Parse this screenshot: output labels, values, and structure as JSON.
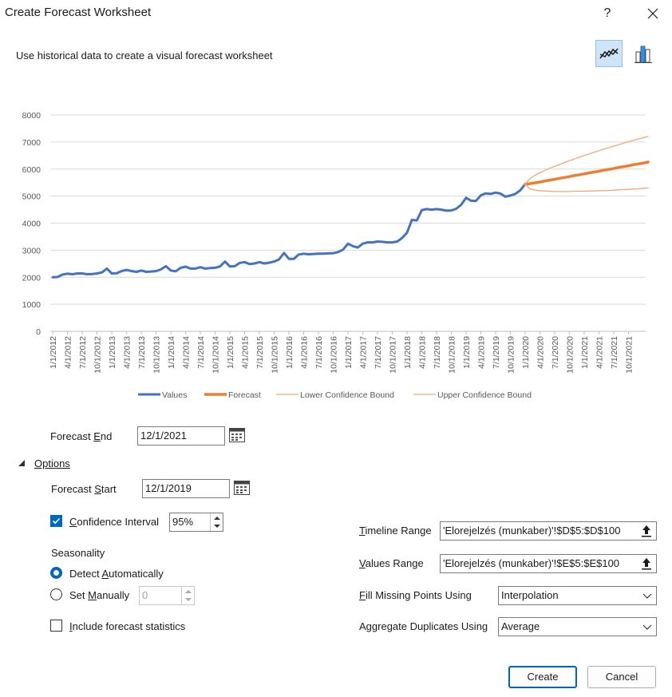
{
  "window": {
    "title": "Create Forecast Worksheet",
    "help_label": "?"
  },
  "subtitle": "Use historical data to create a visual forecast worksheet",
  "chart_types": [
    "line-chart-icon",
    "column-chart-icon"
  ],
  "chart_data": {
    "type": "line",
    "ylim": [
      0,
      8000
    ],
    "y_ticks": [
      "0",
      "1000",
      "2000",
      "3000",
      "4000",
      "5000",
      "6000",
      "7000",
      "8000"
    ],
    "x_tick_labels": [
      "1/1/2012",
      "4/1/2012",
      "7/1/2012",
      "10/1/2012",
      "1/1/2013",
      "4/1/2013",
      "7/1/2013",
      "10/1/2013",
      "1/1/2014",
      "4/1/2014",
      "7/1/2014",
      "10/1/2014",
      "1/1/2015",
      "4/1/2015",
      "7/1/2015",
      "10/1/2015",
      "1/1/2016",
      "4/1/2016",
      "7/1/2016",
      "10/1/2016",
      "1/1/2017",
      "4/1/2017",
      "7/1/2017",
      "10/1/2017",
      "1/1/2018",
      "4/1/2018",
      "7/1/2018",
      "10/1/2018",
      "1/1/2019",
      "4/1/2019",
      "7/1/2019",
      "10/1/2019",
      "1/1/2020",
      "4/1/2020",
      "7/1/2020",
      "10/1/2020",
      "1/1/2021",
      "4/1/2021",
      "7/1/2021",
      "10/1/2021"
    ],
    "grid": true,
    "legend_position": "bottom",
    "series": [
      {
        "name": "Values",
        "color": "#4472c4",
        "width": 3,
        "values": [
          2000,
          2010,
          2100,
          2130,
          2110,
          2140,
          2140,
          2110,
          2120,
          2140,
          2180,
          2320,
          2140,
          2150,
          2230,
          2270,
          2230,
          2200,
          2250,
          2200,
          2210,
          2230,
          2290,
          2410,
          2250,
          2220,
          2350,
          2390,
          2320,
          2320,
          2370,
          2320,
          2340,
          2350,
          2400,
          2580,
          2400,
          2410,
          2530,
          2560,
          2490,
          2510,
          2560,
          2510,
          2540,
          2580,
          2660,
          2900,
          2680,
          2680,
          2840,
          2870,
          2850,
          2860,
          2870,
          2870,
          2880,
          2890,
          2930,
          3020,
          3240,
          3150,
          3100,
          3240,
          3290,
          3290,
          3320,
          3310,
          3290,
          3290,
          3320,
          3450,
          3650,
          4120,
          4100,
          4480,
          4520,
          4500,
          4520,
          4500,
          4460,
          4470,
          4530,
          4680,
          4940,
          4830,
          4820,
          5030,
          5100,
          5080,
          5130,
          5090,
          4980,
          5020,
          5080,
          5210,
          5440,
          null,
          null,
          null,
          null,
          null,
          null,
          null,
          null,
          null,
          null,
          null,
          null,
          null,
          null,
          null,
          null,
          null,
          null,
          null,
          null,
          null,
          null,
          null,
          null
        ]
      },
      {
        "name": "Forecast",
        "color": "#ed7d31",
        "width": 3.5,
        "values": [
          null,
          null,
          null,
          null,
          null,
          null,
          null,
          null,
          null,
          null,
          null,
          null,
          null,
          null,
          null,
          null,
          null,
          null,
          null,
          null,
          null,
          null,
          null,
          null,
          null,
          null,
          null,
          null,
          null,
          null,
          null,
          null,
          null,
          null,
          null,
          null,
          null,
          null,
          null,
          null,
          null,
          null,
          null,
          null,
          null,
          null,
          null,
          null,
          null,
          null,
          null,
          null,
          null,
          null,
          null,
          null,
          null,
          null,
          null,
          null,
          null,
          null,
          null,
          null,
          null,
          null,
          null,
          null,
          null,
          null,
          null,
          null,
          null,
          null,
          null,
          null,
          null,
          null,
          null,
          null,
          null,
          null,
          null,
          null,
          null,
          null,
          null,
          null,
          null,
          null,
          null,
          null,
          null,
          null,
          null,
          null,
          5440,
          5460,
          5490,
          5520,
          5560,
          5590,
          5620,
          5660,
          5690,
          5720,
          5760,
          5790,
          5820,
          5860,
          5890,
          5920,
          5960,
          5990,
          6020,
          6060,
          6090,
          6120,
          6160,
          6190,
          6220,
          6260
        ]
      },
      {
        "name": "Lower Confidence Bound",
        "color": "#f4a875",
        "width": 1.3,
        "values": [
          null,
          null,
          null,
          null,
          null,
          null,
          null,
          null,
          null,
          null,
          null,
          null,
          null,
          null,
          null,
          null,
          null,
          null,
          null,
          null,
          null,
          null,
          null,
          null,
          null,
          null,
          null,
          null,
          null,
          null,
          null,
          null,
          null,
          null,
          null,
          null,
          null,
          null,
          null,
          null,
          null,
          null,
          null,
          null,
          null,
          null,
          null,
          null,
          null,
          null,
          null,
          null,
          null,
          null,
          null,
          null,
          null,
          null,
          null,
          null,
          null,
          null,
          null,
          null,
          null,
          null,
          null,
          null,
          null,
          null,
          null,
          null,
          null,
          null,
          null,
          null,
          null,
          null,
          null,
          null,
          null,
          null,
          null,
          null,
          null,
          null,
          null,
          null,
          null,
          null,
          null,
          null,
          null,
          null,
          null,
          null,
          5440,
          5270,
          5220,
          5200,
          5190,
          5180,
          5170,
          5170,
          5170,
          5170,
          5180,
          5180,
          5180,
          5190,
          5190,
          5200,
          5200,
          5210,
          5220,
          5230,
          5240,
          5250,
          5260,
          5270,
          5290,
          5300
        ]
      },
      {
        "name": "Upper Confidence Bound",
        "color": "#f4a875",
        "width": 1.3,
        "values": [
          null,
          null,
          null,
          null,
          null,
          null,
          null,
          null,
          null,
          null,
          null,
          null,
          null,
          null,
          null,
          null,
          null,
          null,
          null,
          null,
          null,
          null,
          null,
          null,
          null,
          null,
          null,
          null,
          null,
          null,
          null,
          null,
          null,
          null,
          null,
          null,
          null,
          null,
          null,
          null,
          null,
          null,
          null,
          null,
          null,
          null,
          null,
          null,
          null,
          null,
          null,
          null,
          null,
          null,
          null,
          null,
          null,
          null,
          null,
          null,
          null,
          null,
          null,
          null,
          null,
          null,
          null,
          null,
          null,
          null,
          null,
          null,
          null,
          null,
          null,
          null,
          null,
          null,
          null,
          null,
          null,
          null,
          null,
          null,
          null,
          null,
          null,
          null,
          null,
          null,
          null,
          null,
          null,
          null,
          null,
          null,
          5440,
          5650,
          5770,
          5860,
          5950,
          6030,
          6100,
          6170,
          6240,
          6310,
          6370,
          6440,
          6500,
          6560,
          6620,
          6680,
          6740,
          6790,
          6850,
          6900,
          6960,
          7010,
          7060,
          7110,
          7160,
          7210
        ]
      }
    ]
  },
  "forecast_end": {
    "label_pre": "Forecast ",
    "label_u": "E",
    "label_post": "nd",
    "value": "12/1/2021"
  },
  "options": {
    "label": "Options"
  },
  "forecast_start": {
    "label_pre": "Forecast ",
    "label_u": "S",
    "label_post": "tart",
    "value": "12/1/2019"
  },
  "confidence": {
    "label_pre": "",
    "label_u": "C",
    "label_post": "onfidence Interval",
    "value": "95%"
  },
  "seasonality": {
    "title": "Seasonality",
    "detect": {
      "label_pre": "Detect ",
      "label_u": "A",
      "label_post": "utomatically"
    },
    "manual": {
      "label_pre": "Set ",
      "label_u": "M",
      "label_post": "anually",
      "value": "0"
    }
  },
  "include_stats": {
    "label_pre": "",
    "label_u": "I",
    "label_post": "nclude forecast statistics"
  },
  "timeline_range": {
    "label_pre": "",
    "label_u": "T",
    "label_post": "imeline Range",
    "value": "'Elorejelzés (munkaber)'!$D$5:$D$100"
  },
  "values_range": {
    "label_pre": "",
    "label_u": "V",
    "label_post": "alues Range",
    "value": "'Elorejelzés (munkaber)'!$E$5:$E$100"
  },
  "fill_missing": {
    "label_pre": "",
    "label_u": "F",
    "label_post": "ill Missing Points Using",
    "value": "Interpolation"
  },
  "aggregate": {
    "label_pre": "A",
    "label_u": "g",
    "label_post": "gregate Duplicates Using",
    "value": "Average"
  },
  "buttons": {
    "create": "Create",
    "cancel": "Cancel"
  }
}
